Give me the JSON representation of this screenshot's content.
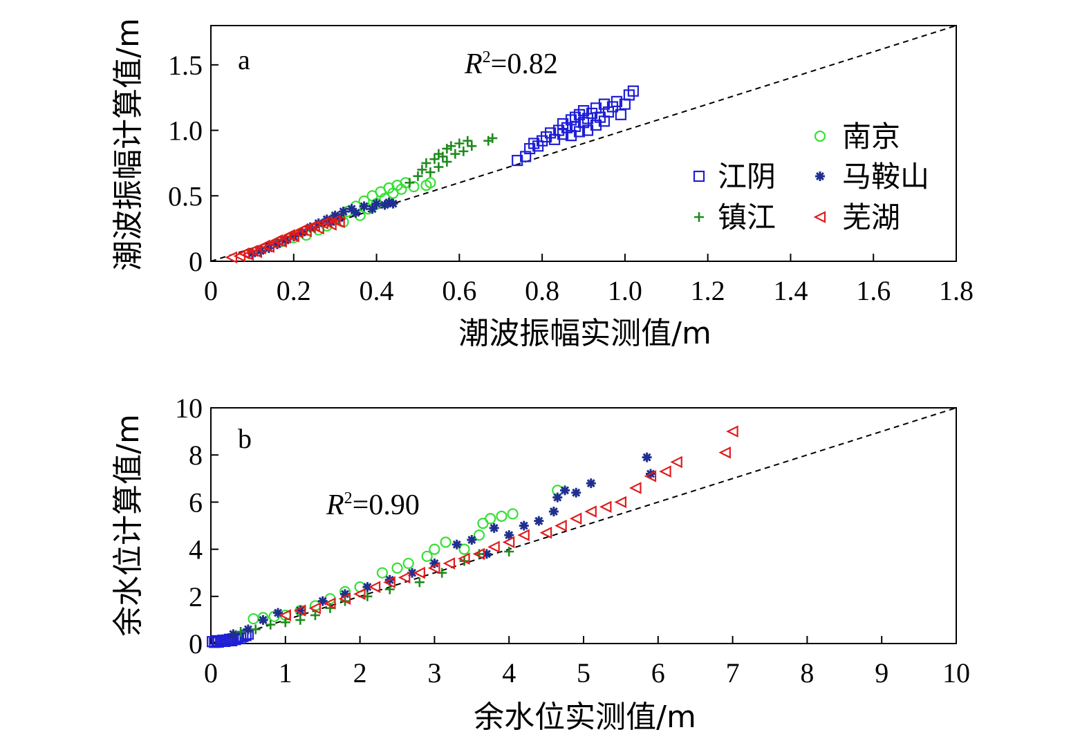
{
  "chart_data": [
    {
      "type": "scatter",
      "panel_label": "a",
      "r2_symbol": "R",
      "r2_exponent": "2",
      "r2_value": "=0.82",
      "xlabel": "潮波振幅实测值/m",
      "ylabel": "潮波振幅计算值/m",
      "xlim": [
        0,
        1.8
      ],
      "ylim": [
        0,
        1.8
      ],
      "xticks": [
        "0",
        "0.2",
        "0.4",
        "0.6",
        "0.8",
        "1.0",
        "1.2",
        "1.4",
        "1.6",
        "1.8"
      ],
      "yticks": [
        "0",
        "0.5",
        "1.0",
        "1.5"
      ],
      "reference_line": "y = x (dashed)",
      "legend_position": "upper-right inside",
      "series": [
        {
          "name": "江阴",
          "marker": "square",
          "color": "#1f1fd6",
          "points": [
            [
              0.74,
              0.77
            ],
            [
              0.76,
              0.8
            ],
            [
              0.77,
              0.86
            ],
            [
              0.78,
              0.9
            ],
            [
              0.79,
              0.88
            ],
            [
              0.8,
              0.92
            ],
            [
              0.81,
              0.95
            ],
            [
              0.82,
              0.98
            ],
            [
              0.83,
              0.93
            ],
            [
              0.84,
              1.0
            ],
            [
              0.85,
              0.97
            ],
            [
              0.85,
              1.05
            ],
            [
              0.86,
              1.02
            ],
            [
              0.87,
              1.08
            ],
            [
              0.87,
              0.96
            ],
            [
              0.88,
              1.1
            ],
            [
              0.88,
              1.03
            ],
            [
              0.89,
              1.12
            ],
            [
              0.89,
              0.99
            ],
            [
              0.9,
              1.06
            ],
            [
              0.9,
              1.15
            ],
            [
              0.91,
              1.09
            ],
            [
              0.91,
              1.0
            ],
            [
              0.92,
              1.13
            ],
            [
              0.93,
              1.17
            ],
            [
              0.93,
              1.04
            ],
            [
              0.94,
              1.1
            ],
            [
              0.95,
              1.2
            ],
            [
              0.95,
              1.07
            ],
            [
              0.96,
              1.14
            ],
            [
              0.97,
              1.18
            ],
            [
              0.98,
              1.22
            ],
            [
              0.99,
              1.12
            ],
            [
              1.0,
              1.2
            ],
            [
              1.01,
              1.27
            ],
            [
              1.02,
              1.3
            ]
          ]
        },
        {
          "name": "南京",
          "marker": "circle",
          "color": "#33e033",
          "points": [
            [
              0.17,
              0.15
            ],
            [
              0.2,
              0.18
            ],
            [
              0.23,
              0.2
            ],
            [
              0.26,
              0.24
            ],
            [
              0.28,
              0.27
            ],
            [
              0.3,
              0.33
            ],
            [
              0.32,
              0.3
            ],
            [
              0.33,
              0.38
            ],
            [
              0.35,
              0.42
            ],
            [
              0.36,
              0.35
            ],
            [
              0.37,
              0.46
            ],
            [
              0.38,
              0.4
            ],
            [
              0.39,
              0.5
            ],
            [
              0.4,
              0.44
            ],
            [
              0.41,
              0.53
            ],
            [
              0.42,
              0.48
            ],
            [
              0.43,
              0.56
            ],
            [
              0.44,
              0.52
            ],
            [
              0.45,
              0.58
            ],
            [
              0.46,
              0.55
            ],
            [
              0.47,
              0.6
            ],
            [
              0.49,
              0.57
            ],
            [
              0.52,
              0.58
            ],
            [
              0.53,
              0.6
            ]
          ]
        },
        {
          "name": "马鞍山",
          "marker": "star",
          "color": "#1f2f8f",
          "points": [
            [
              0.1,
              0.06
            ],
            [
              0.12,
              0.08
            ],
            [
              0.14,
              0.1
            ],
            [
              0.16,
              0.13
            ],
            [
              0.18,
              0.16
            ],
            [
              0.2,
              0.19
            ],
            [
              0.22,
              0.22
            ],
            [
              0.24,
              0.26
            ],
            [
              0.26,
              0.29
            ],
            [
              0.28,
              0.32
            ],
            [
              0.29,
              0.3
            ],
            [
              0.3,
              0.35
            ],
            [
              0.31,
              0.33
            ],
            [
              0.32,
              0.38
            ],
            [
              0.34,
              0.4
            ],
            [
              0.35,
              0.37
            ],
            [
              0.37,
              0.42
            ],
            [
              0.39,
              0.4
            ],
            [
              0.4,
              0.44
            ],
            [
              0.42,
              0.43
            ],
            [
              0.43,
              0.45
            ],
            [
              0.44,
              0.44
            ]
          ]
        },
        {
          "name": "镇江",
          "marker": "plus",
          "color": "#1e8a1e",
          "points": [
            [
              0.48,
              0.6
            ],
            [
              0.5,
              0.65
            ],
            [
              0.51,
              0.7
            ],
            [
              0.52,
              0.75
            ],
            [
              0.53,
              0.68
            ],
            [
              0.54,
              0.78
            ],
            [
              0.55,
              0.72
            ],
            [
              0.55,
              0.82
            ],
            [
              0.56,
              0.8
            ],
            [
              0.57,
              0.86
            ],
            [
              0.57,
              0.76
            ],
            [
              0.58,
              0.88
            ],
            [
              0.59,
              0.82
            ],
            [
              0.6,
              0.9
            ],
            [
              0.61,
              0.84
            ],
            [
              0.62,
              0.92
            ],
            [
              0.63,
              0.88
            ],
            [
              0.67,
              0.92
            ],
            [
              0.68,
              0.94
            ]
          ]
        },
        {
          "name": "芜湖",
          "marker": "triangle-left",
          "color": "#e01c1c",
          "points": [
            [
              0.05,
              0.03
            ],
            [
              0.07,
              0.04
            ],
            [
              0.08,
              0.06
            ],
            [
              0.09,
              0.05
            ],
            [
              0.1,
              0.08
            ],
            [
              0.11,
              0.07
            ],
            [
              0.12,
              0.1
            ],
            [
              0.13,
              0.12
            ],
            [
              0.14,
              0.11
            ],
            [
              0.15,
              0.14
            ],
            [
              0.16,
              0.16
            ],
            [
              0.17,
              0.15
            ],
            [
              0.18,
              0.18
            ],
            [
              0.19,
              0.2
            ],
            [
              0.2,
              0.19
            ],
            [
              0.21,
              0.22
            ],
            [
              0.22,
              0.24
            ],
            [
              0.23,
              0.23
            ],
            [
              0.24,
              0.26
            ],
            [
              0.25,
              0.27
            ],
            [
              0.26,
              0.25
            ],
            [
              0.27,
              0.29
            ],
            [
              0.28,
              0.3
            ],
            [
              0.29,
              0.28
            ],
            [
              0.3,
              0.31
            ],
            [
              0.31,
              0.3
            ]
          ]
        }
      ]
    },
    {
      "type": "scatter",
      "panel_label": "b",
      "r2_symbol": "R",
      "r2_exponent": "2",
      "r2_value": "=0.90",
      "xlabel": "余水位实测值/m",
      "ylabel": "余水位计算值/m",
      "xlim": [
        0,
        10
      ],
      "ylim": [
        0,
        10
      ],
      "xticks": [
        "0",
        "1",
        "2",
        "3",
        "4",
        "5",
        "6",
        "7",
        "8",
        "9",
        "10"
      ],
      "yticks": [
        "0",
        "2",
        "4",
        "6",
        "8",
        "10"
      ],
      "reference_line": "y = x (dashed)",
      "series": [
        {
          "name": "江阴",
          "marker": "square",
          "color": "#1f1fd6",
          "points": [
            [
              0.02,
              0.08
            ],
            [
              0.05,
              0.05
            ],
            [
              0.08,
              0.12
            ],
            [
              0.1,
              0.06
            ],
            [
              0.13,
              0.1
            ],
            [
              0.16,
              0.14
            ],
            [
              0.19,
              0.09
            ],
            [
              0.22,
              0.15
            ],
            [
              0.25,
              0.18
            ],
            [
              0.28,
              0.12
            ],
            [
              0.3,
              0.2
            ],
            [
              0.33,
              0.17
            ],
            [
              0.36,
              0.24
            ],
            [
              0.4,
              0.22
            ],
            [
              0.43,
              0.3
            ],
            [
              0.47,
              0.34
            ],
            [
              0.5,
              0.4
            ]
          ]
        },
        {
          "name": "南京",
          "marker": "circle",
          "color": "#33e033",
          "points": [
            [
              0.57,
              1.05
            ],
            [
              0.7,
              1.1
            ],
            [
              0.85,
              1.15
            ],
            [
              1.0,
              1.2
            ],
            [
              1.2,
              1.4
            ],
            [
              1.4,
              1.6
            ],
            [
              1.6,
              1.9
            ],
            [
              1.8,
              2.2
            ],
            [
              2.0,
              2.4
            ],
            [
              2.3,
              3.0
            ],
            [
              2.5,
              3.2
            ],
            [
              2.65,
              3.4
            ],
            [
              2.9,
              3.7
            ],
            [
              3.0,
              4.0
            ],
            [
              3.15,
              4.3
            ],
            [
              3.4,
              4.0
            ],
            [
              3.6,
              4.6
            ],
            [
              3.65,
              5.1
            ],
            [
              3.75,
              5.3
            ],
            [
              3.9,
              5.4
            ],
            [
              4.05,
              5.5
            ],
            [
              4.65,
              6.5
            ]
          ]
        },
        {
          "name": "马鞍山",
          "marker": "star",
          "color": "#1f2f8f",
          "points": [
            [
              0.3,
              0.4
            ],
            [
              0.5,
              0.6
            ],
            [
              0.7,
              1.0
            ],
            [
              0.9,
              1.3
            ],
            [
              1.2,
              1.4
            ],
            [
              1.5,
              1.8
            ],
            [
              1.8,
              2.1
            ],
            [
              2.1,
              2.4
            ],
            [
              2.4,
              2.7
            ],
            [
              2.7,
              3.0
            ],
            [
              3.0,
              3.4
            ],
            [
              3.3,
              4.2
            ],
            [
              3.5,
              4.4
            ],
            [
              3.7,
              3.8
            ],
            [
              3.8,
              4.9
            ],
            [
              4.0,
              4.6
            ],
            [
              4.2,
              5.0
            ],
            [
              4.4,
              5.2
            ],
            [
              4.6,
              5.6
            ],
            [
              4.65,
              6.2
            ],
            [
              4.75,
              6.5
            ],
            [
              4.9,
              6.4
            ],
            [
              5.1,
              6.8
            ],
            [
              5.85,
              7.9
            ],
            [
              5.9,
              7.2
            ]
          ]
        },
        {
          "name": "镇江",
          "marker": "plus",
          "color": "#1e8a1e",
          "points": [
            [
              0.4,
              0.5
            ],
            [
              0.6,
              0.6
            ],
            [
              0.8,
              0.8
            ],
            [
              1.0,
              0.9
            ],
            [
              1.2,
              1.0
            ],
            [
              1.4,
              1.2
            ],
            [
              1.6,
              1.5
            ],
            [
              1.8,
              1.8
            ],
            [
              2.1,
              2.0
            ],
            [
              2.4,
              2.3
            ],
            [
              2.8,
              2.6
            ],
            [
              3.1,
              3.0
            ],
            [
              3.4,
              3.5
            ],
            [
              3.6,
              3.8
            ],
            [
              4.0,
              3.9
            ]
          ]
        },
        {
          "name": "芜湖",
          "marker": "triangle-left",
          "color": "#e01c1c",
          "points": [
            [
              1.0,
              1.2
            ],
            [
              1.2,
              1.4
            ],
            [
              1.4,
              1.5
            ],
            [
              1.6,
              1.7
            ],
            [
              1.8,
              1.9
            ],
            [
              2.0,
              2.1
            ],
            [
              2.2,
              2.4
            ],
            [
              2.4,
              2.6
            ],
            [
              2.6,
              2.8
            ],
            [
              2.8,
              3.0
            ],
            [
              3.0,
              3.2
            ],
            [
              3.2,
              3.4
            ],
            [
              3.4,
              3.6
            ],
            [
              3.6,
              3.8
            ],
            [
              3.8,
              4.1
            ],
            [
              4.0,
              4.3
            ],
            [
              4.2,
              4.6
            ],
            [
              4.5,
              4.7
            ],
            [
              4.7,
              5.0
            ],
            [
              4.9,
              5.3
            ],
            [
              5.1,
              5.6
            ],
            [
              5.3,
              5.8
            ],
            [
              5.5,
              6.0
            ],
            [
              5.7,
              6.6
            ],
            [
              5.9,
              7.1
            ],
            [
              6.1,
              7.3
            ],
            [
              6.25,
              7.7
            ],
            [
              6.9,
              8.1
            ],
            [
              7.0,
              9.0
            ]
          ]
        }
      ]
    }
  ]
}
